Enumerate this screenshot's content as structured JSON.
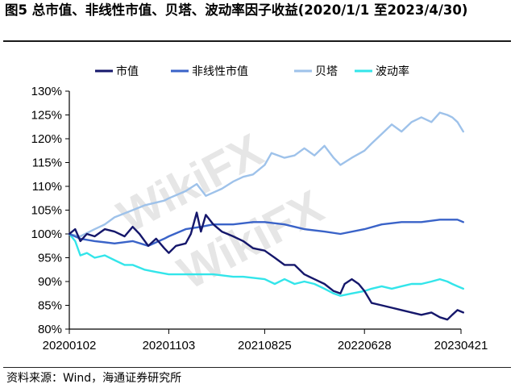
{
  "title": "图5 总市值、非线性市值、贝塔、波动率因子收益(2020/1/1 至2023/4/30)",
  "source": "资料来源：Wind，海通证券研究所",
  "watermark": "WikiFX",
  "colors": {
    "market_cap": "#15176b",
    "nonlinear_market_cap": "#3a63c8",
    "beta": "#9ec2ea",
    "volatility": "#33e5ea",
    "axis": "#000000"
  },
  "chart_data": {
    "type": "line",
    "title": "图5 总市值、非线性市值、贝塔、波动率因子收益(2020/1/1 至2023/4/30)",
    "xlabel": "",
    "ylabel": "",
    "x_ticks": [
      "20200102",
      "20201103",
      "20210825",
      "20220628",
      "20230421"
    ],
    "y_ticks": [
      "80%",
      "85%",
      "90%",
      "95%",
      "100%",
      "105%",
      "110%",
      "115%",
      "120%",
      "125%",
      "130%"
    ],
    "ylim": [
      0.8,
      1.3
    ],
    "grid": false,
    "legend_position": "top",
    "series": [
      {
        "name": "市值",
        "color": "#15176b",
        "values": [
          [
            "2020-01-02",
            1.0
          ],
          [
            "2020-01-20",
            1.01
          ],
          [
            "2020-02-05",
            0.985
          ],
          [
            "2020-02-25",
            1.0
          ],
          [
            "2020-03-20",
            0.995
          ],
          [
            "2020-04-20",
            1.01
          ],
          [
            "2020-05-20",
            1.005
          ],
          [
            "2020-06-20",
            0.995
          ],
          [
            "2020-07-15",
            1.015
          ],
          [
            "2020-08-05",
            1.0
          ],
          [
            "2020-09-01",
            0.975
          ],
          [
            "2020-09-25",
            0.99
          ],
          [
            "2020-10-20",
            0.97
          ],
          [
            "2020-11-03",
            0.96
          ],
          [
            "2020-11-25",
            0.975
          ],
          [
            "2020-12-25",
            0.98
          ],
          [
            "2021-01-10",
            1.0
          ],
          [
            "2021-01-28",
            1.045
          ],
          [
            "2021-02-10",
            1.005
          ],
          [
            "2021-02-25",
            1.04
          ],
          [
            "2021-03-20",
            1.02
          ],
          [
            "2021-04-15",
            1.005
          ],
          [
            "2021-05-20",
            0.995
          ],
          [
            "2021-06-20",
            0.985
          ],
          [
            "2021-07-20",
            0.97
          ],
          [
            "2021-08-25",
            0.965
          ],
          [
            "2021-09-25",
            0.95
          ],
          [
            "2021-10-25",
            0.935
          ],
          [
            "2021-11-25",
            0.935
          ],
          [
            "2021-12-25",
            0.915
          ],
          [
            "2022-01-25",
            0.905
          ],
          [
            "2022-02-25",
            0.895
          ],
          [
            "2022-03-25",
            0.88
          ],
          [
            "2022-04-15",
            0.875
          ],
          [
            "2022-04-28",
            0.895
          ],
          [
            "2022-05-20",
            0.905
          ],
          [
            "2022-06-10",
            0.895
          ],
          [
            "2022-06-28",
            0.88
          ],
          [
            "2022-07-20",
            0.855
          ],
          [
            "2022-08-20",
            0.85
          ],
          [
            "2022-09-20",
            0.845
          ],
          [
            "2022-10-20",
            0.84
          ],
          [
            "2022-11-20",
            0.835
          ],
          [
            "2022-12-20",
            0.83
          ],
          [
            "2023-01-20",
            0.835
          ],
          [
            "2023-02-15",
            0.825
          ],
          [
            "2023-03-10",
            0.82
          ],
          [
            "2023-03-25",
            0.83
          ],
          [
            "2023-04-10",
            0.84
          ],
          [
            "2023-04-28",
            0.835
          ]
        ]
      },
      {
        "name": "非线性市值",
        "color": "#3a63c8",
        "values": [
          [
            "2020-01-02",
            1.0
          ],
          [
            "2020-02-05",
            0.99
          ],
          [
            "2020-03-20",
            0.985
          ],
          [
            "2020-05-20",
            0.98
          ],
          [
            "2020-07-15",
            0.985
          ],
          [
            "2020-09-01",
            0.975
          ],
          [
            "2020-10-20",
            0.99
          ],
          [
            "2020-11-03",
            0.995
          ],
          [
            "2020-12-25",
            1.01
          ],
          [
            "2021-02-10",
            1.015
          ],
          [
            "2021-03-20",
            1.02
          ],
          [
            "2021-05-20",
            1.02
          ],
          [
            "2021-07-20",
            1.025
          ],
          [
            "2021-08-25",
            1.025
          ],
          [
            "2021-10-25",
            1.02
          ],
          [
            "2021-12-25",
            1.01
          ],
          [
            "2022-02-25",
            1.005
          ],
          [
            "2022-04-15",
            1.0
          ],
          [
            "2022-06-28",
            1.01
          ],
          [
            "2022-08-20",
            1.02
          ],
          [
            "2022-10-20",
            1.025
          ],
          [
            "2022-12-20",
            1.025
          ],
          [
            "2023-02-15",
            1.03
          ],
          [
            "2023-04-10",
            1.03
          ],
          [
            "2023-04-28",
            1.025
          ]
        ]
      },
      {
        "name": "贝塔",
        "color": "#9ec2ea",
        "values": [
          [
            "2020-01-02",
            1.0
          ],
          [
            "2020-02-05",
            0.995
          ],
          [
            "2020-03-20",
            1.01
          ],
          [
            "2020-04-20",
            1.02
          ],
          [
            "2020-05-20",
            1.035
          ],
          [
            "2020-07-15",
            1.05
          ],
          [
            "2020-08-20",
            1.06
          ],
          [
            "2020-10-20",
            1.07
          ],
          [
            "2020-11-03",
            1.075
          ],
          [
            "2020-12-25",
            1.09
          ],
          [
            "2021-01-28",
            1.105
          ],
          [
            "2021-02-25",
            1.08
          ],
          [
            "2021-04-15",
            1.095
          ],
          [
            "2021-05-20",
            1.11
          ],
          [
            "2021-06-20",
            1.12
          ],
          [
            "2021-07-20",
            1.125
          ],
          [
            "2021-08-25",
            1.145
          ],
          [
            "2021-09-15",
            1.17
          ],
          [
            "2021-10-25",
            1.16
          ],
          [
            "2021-11-25",
            1.165
          ],
          [
            "2021-12-25",
            1.18
          ],
          [
            "2022-01-25",
            1.165
          ],
          [
            "2022-02-25",
            1.185
          ],
          [
            "2022-03-25",
            1.16
          ],
          [
            "2022-04-15",
            1.145
          ],
          [
            "2022-05-20",
            1.16
          ],
          [
            "2022-06-28",
            1.175
          ],
          [
            "2022-07-20",
            1.19
          ],
          [
            "2022-08-20",
            1.21
          ],
          [
            "2022-09-20",
            1.23
          ],
          [
            "2022-10-20",
            1.215
          ],
          [
            "2022-11-20",
            1.235
          ],
          [
            "2022-12-20",
            1.245
          ],
          [
            "2023-01-20",
            1.235
          ],
          [
            "2023-02-15",
            1.255
          ],
          [
            "2023-03-10",
            1.25
          ],
          [
            "2023-03-25",
            1.245
          ],
          [
            "2023-04-10",
            1.235
          ],
          [
            "2023-04-28",
            1.215
          ]
        ]
      },
      {
        "name": "波动率",
        "color": "#33e5ea",
        "values": [
          [
            "2020-01-02",
            1.0
          ],
          [
            "2020-01-20",
            0.985
          ],
          [
            "2020-02-05",
            0.955
          ],
          [
            "2020-02-25",
            0.96
          ],
          [
            "2020-03-20",
            0.95
          ],
          [
            "2020-04-20",
            0.955
          ],
          [
            "2020-05-20",
            0.945
          ],
          [
            "2020-06-20",
            0.935
          ],
          [
            "2020-07-15",
            0.935
          ],
          [
            "2020-08-20",
            0.925
          ],
          [
            "2020-09-25",
            0.92
          ],
          [
            "2020-11-03",
            0.915
          ],
          [
            "2020-12-25",
            0.915
          ],
          [
            "2021-02-10",
            0.915
          ],
          [
            "2021-03-20",
            0.915
          ],
          [
            "2021-05-20",
            0.91
          ],
          [
            "2021-06-20",
            0.91
          ],
          [
            "2021-08-25",
            0.905
          ],
          [
            "2021-09-25",
            0.895
          ],
          [
            "2021-10-25",
            0.905
          ],
          [
            "2021-11-25",
            0.895
          ],
          [
            "2021-12-25",
            0.9
          ],
          [
            "2022-01-25",
            0.895
          ],
          [
            "2022-02-25",
            0.885
          ],
          [
            "2022-03-25",
            0.875
          ],
          [
            "2022-04-15",
            0.87
          ],
          [
            "2022-05-20",
            0.875
          ],
          [
            "2022-06-28",
            0.88
          ],
          [
            "2022-07-20",
            0.885
          ],
          [
            "2022-08-20",
            0.89
          ],
          [
            "2022-09-20",
            0.885
          ],
          [
            "2022-10-20",
            0.89
          ],
          [
            "2022-11-20",
            0.895
          ],
          [
            "2022-12-20",
            0.895
          ],
          [
            "2023-01-20",
            0.9
          ],
          [
            "2023-02-15",
            0.905
          ],
          [
            "2023-03-10",
            0.9
          ],
          [
            "2023-03-25",
            0.895
          ],
          [
            "2023-04-10",
            0.89
          ],
          [
            "2023-04-28",
            0.885
          ]
        ]
      }
    ]
  }
}
